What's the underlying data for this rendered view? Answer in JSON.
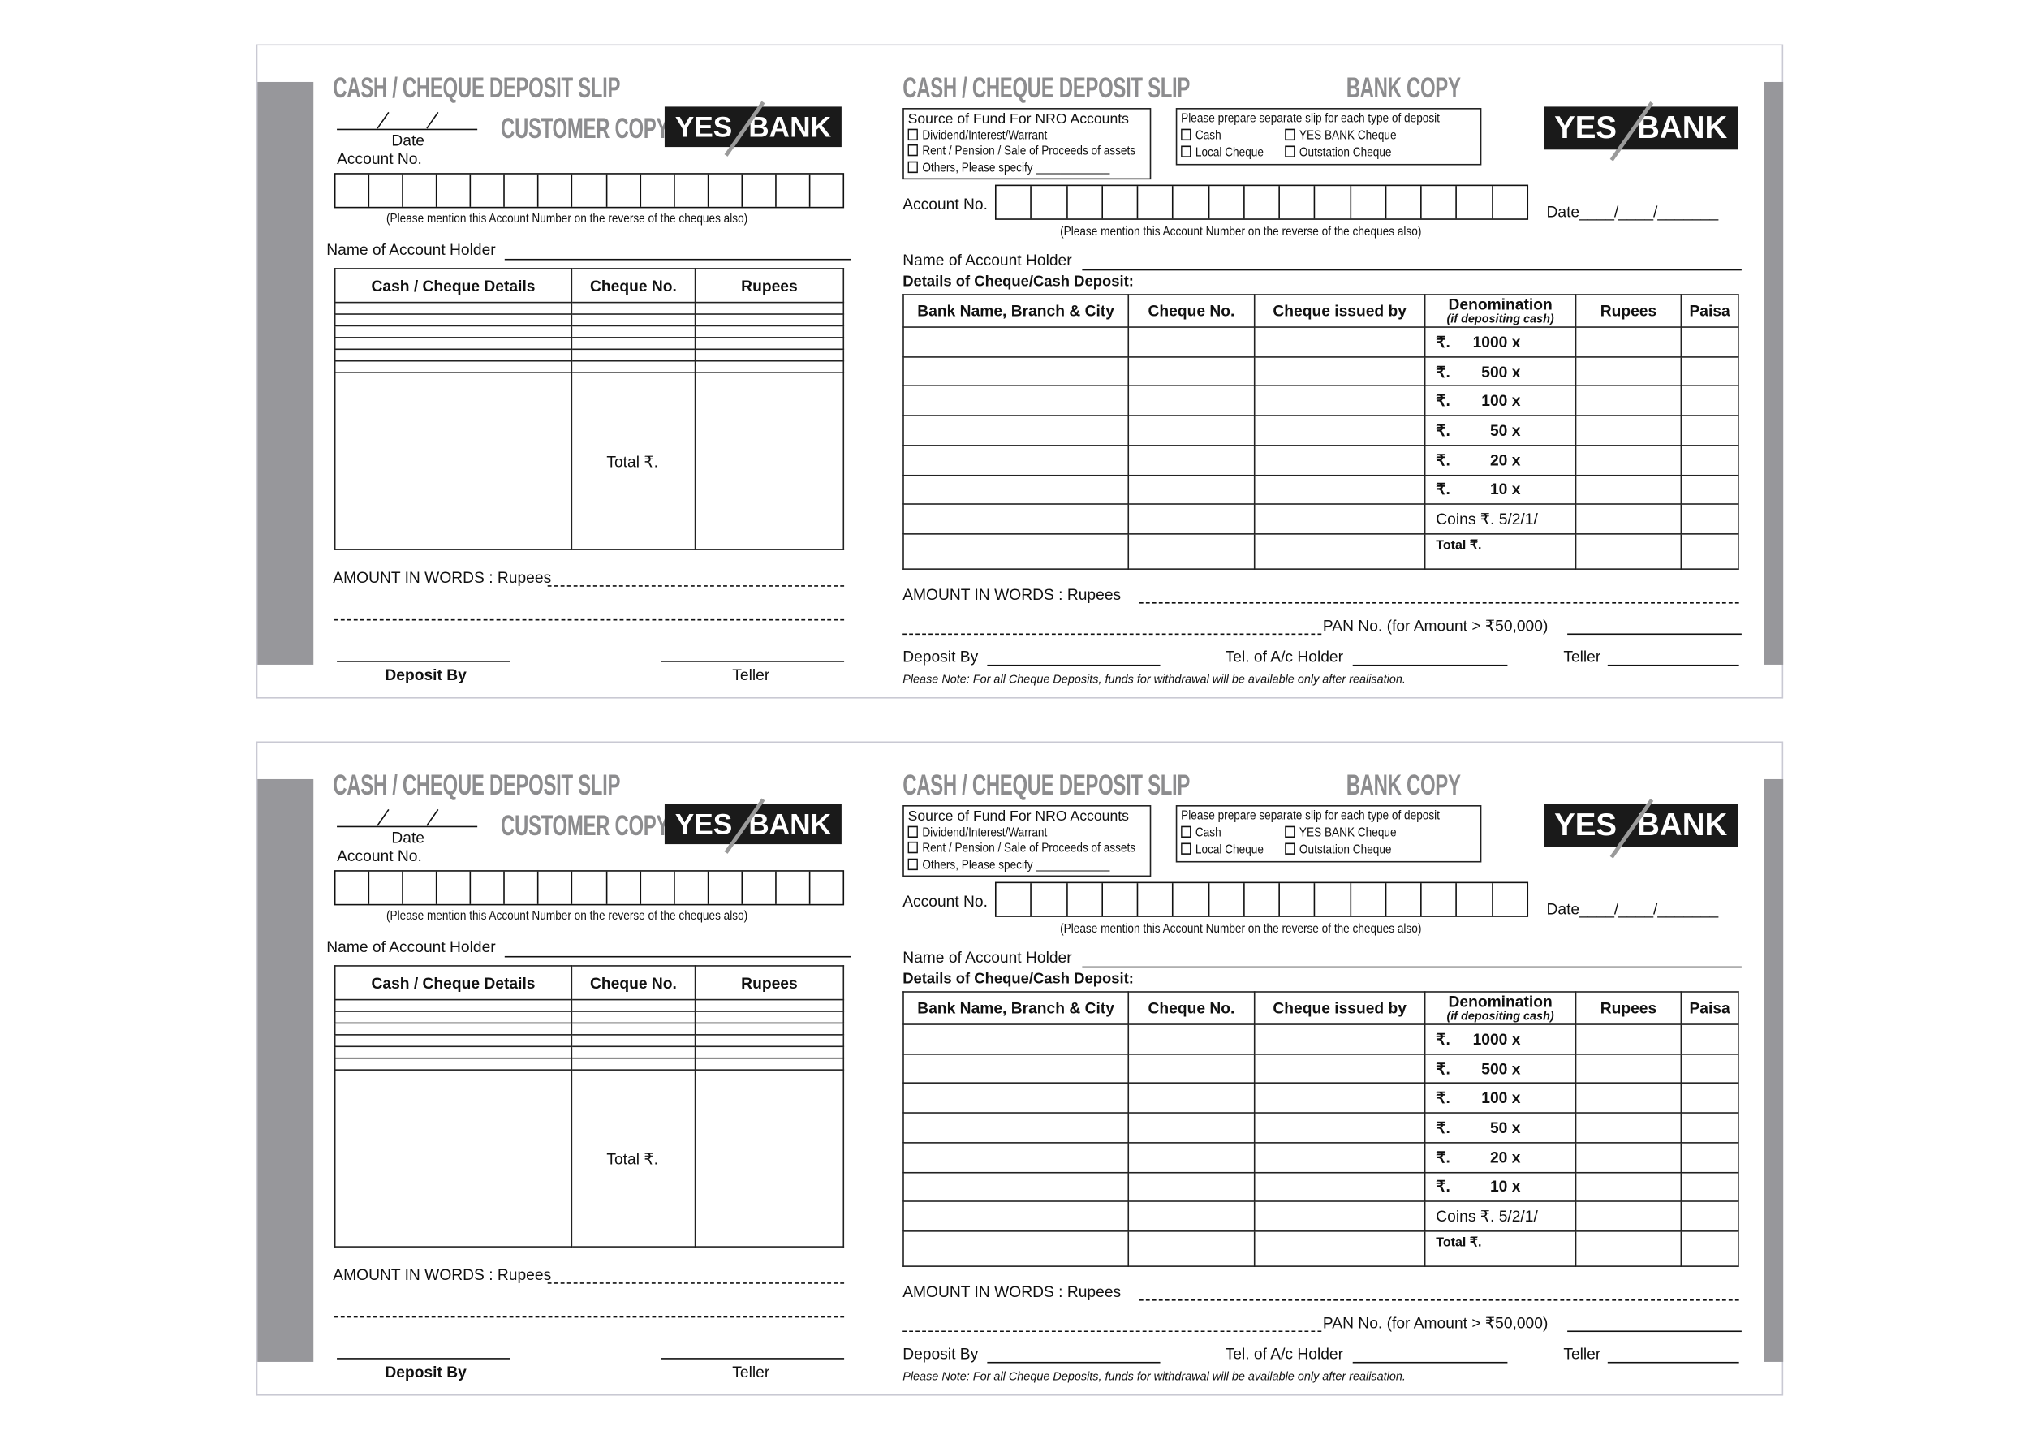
{
  "slip": {
    "title": "CASH / CHEQUE DEPOSIT SLIP",
    "logo": {
      "left": "YES",
      "right": "BANK"
    },
    "customer": {
      "copy_label": "CUSTOMER COPY",
      "date_label": "Date",
      "account_label": "Account No.",
      "account_note": "(Please mention this Account Number on the reverse of the cheques also)",
      "holder_label": "Name of Account Holder",
      "columns": [
        "Cash / Cheque Details",
        "Cheque No.",
        "Rupees"
      ],
      "total_label": "Total ₹.",
      "amount_words": "AMOUNT IN WORDS : Rupees",
      "deposit_by": "Deposit By",
      "teller": "Teller"
    },
    "bank": {
      "copy_label": "BANK COPY",
      "source_title": "Source of Fund For NRO Accounts",
      "source_options": [
        "Dividend/Interest/Warrant",
        "Rent / Pension / Sale of Proceeds of assets",
        "Others, Please specify"
      ],
      "separate_title": "Please prepare separate slip for each type of deposit",
      "deposit_types": [
        "Cash",
        "YES BANK Cheque",
        "Local Cheque",
        "Outstation Cheque"
      ],
      "account_label": "Account No.",
      "date_label": "Date____/____/_______",
      "account_note": "(Please mention this Account Number on the reverse of the cheques also)",
      "holder_label": "Name of Account Holder",
      "details_label": "Details of Cheque/Cash Deposit:",
      "columns": [
        "Bank Name, Branch & City",
        "Cheque No.",
        "Cheque issued by",
        "Denomination",
        "Rupees",
        "Paisa"
      ],
      "denomination_sub": "(if depositing cash)",
      "denominations": [
        "1000 x",
        "500 x",
        "100 x",
        "50 x",
        "20 x",
        "10 x"
      ],
      "rupee_sign": "₹.",
      "coins_label": "Coins ₹. 5/2/1/",
      "total_label": "Total ₹.",
      "amount_words": "AMOUNT IN WORDS : Rupees",
      "pan_label": "PAN No. (for Amount > ₹50,000)",
      "deposit_by": "Deposit By",
      "tel_label": "Tel. of A/c Holder",
      "teller": "Teller",
      "note": "Please Note: For all Cheque Deposits, funds for withdrawal will be available only after realisation."
    }
  }
}
